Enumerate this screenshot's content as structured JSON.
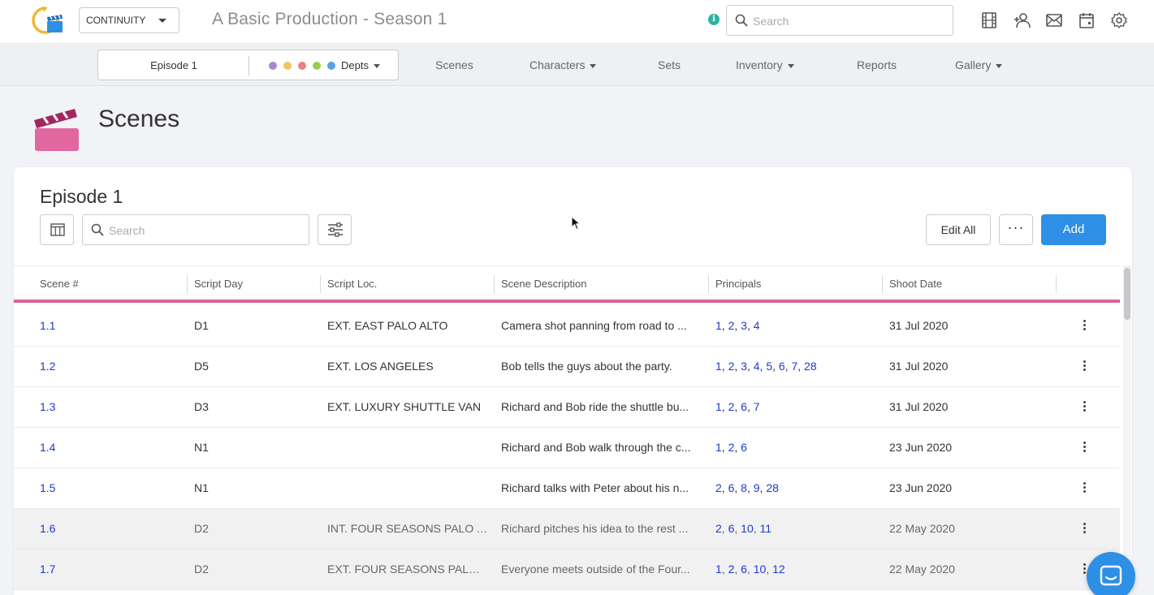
{
  "app": {
    "module_label": "CONTINUITY",
    "production_title": "A Basic Production - Season 1",
    "info_symbol": "i",
    "search_placeholder": "Search"
  },
  "top_icons": [
    "film-icon",
    "add-user-icon",
    "mail-icon",
    "calendar-icon",
    "settings-icon"
  ],
  "nav": {
    "episode_label": "Episode 1",
    "depts_label": "Depts",
    "dept_colors": [
      "#a987d6",
      "#f3c55e",
      "#ec7f88",
      "#9ccc4f",
      "#5d9fe6"
    ],
    "items": [
      {
        "label": "Scenes",
        "dropdown": false
      },
      {
        "label": "Characters",
        "dropdown": true
      },
      {
        "label": "Sets",
        "dropdown": false
      },
      {
        "label": "Inventory",
        "dropdown": true
      },
      {
        "label": "Reports",
        "dropdown": false
      },
      {
        "label": "Gallery",
        "dropdown": true
      }
    ]
  },
  "page": {
    "title": "Scenes",
    "accent_color": "#d6649b"
  },
  "card": {
    "title": "Episode 1",
    "search_placeholder": "Search",
    "edit_all_label": "Edit All",
    "more_label": "···",
    "add_label": "Add"
  },
  "table": {
    "columns": [
      "Scene #",
      "Script Day",
      "Script Loc.",
      "Scene Description",
      "Principals",
      "Shoot Date"
    ],
    "rows": [
      {
        "scene": "1.1",
        "day": "D1",
        "loc": "EXT. EAST PALO ALTO",
        "desc": "Camera shot panning from road to ...",
        "principals": [
          "1",
          "2",
          "3",
          "4"
        ],
        "date": "31 Jul 2020",
        "shaded": false
      },
      {
        "scene": "1.2",
        "day": "D5",
        "loc": "EXT. LOS ANGELES",
        "desc": "Bob tells the guys about the party.",
        "principals": [
          "1",
          "2",
          "3",
          "4",
          "5",
          "6",
          "7",
          "28"
        ],
        "date": "31 Jul 2020",
        "shaded": false
      },
      {
        "scene": "1.3",
        "day": "D3",
        "loc": "EXT. LUXURY SHUTTLE VAN",
        "desc": "Richard and Bob ride the shuttle bu...",
        "principals": [
          "1",
          "2",
          "6",
          "7"
        ],
        "date": "31 Jul 2020",
        "shaded": false
      },
      {
        "scene": "1.4",
        "day": "N1",
        "loc": "",
        "desc": "Richard and Bob walk through the c...",
        "principals": [
          "1",
          "2",
          "6"
        ],
        "date": "23 Jun 2020",
        "shaded": false
      },
      {
        "scene": "1.5",
        "day": "N1",
        "loc": "",
        "desc": "Richard talks with Peter about his n...",
        "principals": [
          "2",
          "6",
          "8",
          "9",
          "28"
        ],
        "date": "23 Jun 2020",
        "shaded": false
      },
      {
        "scene": "1.6",
        "day": "D2",
        "loc": "INT. FOUR SEASONS PALO A...",
        "desc": "Richard pitches his idea to the rest ...",
        "principals": [
          "2",
          "6",
          "10",
          "11"
        ],
        "date": "22 May 2020",
        "shaded": true
      },
      {
        "scene": "1.7",
        "day": "D2",
        "loc": "EXT. FOUR SEASONS PALO A...",
        "desc": "Everyone meets outside of the Four...",
        "principals": [
          "1",
          "2",
          "6",
          "10",
          "12"
        ],
        "date": "22 May 2020",
        "shaded": true
      }
    ]
  }
}
